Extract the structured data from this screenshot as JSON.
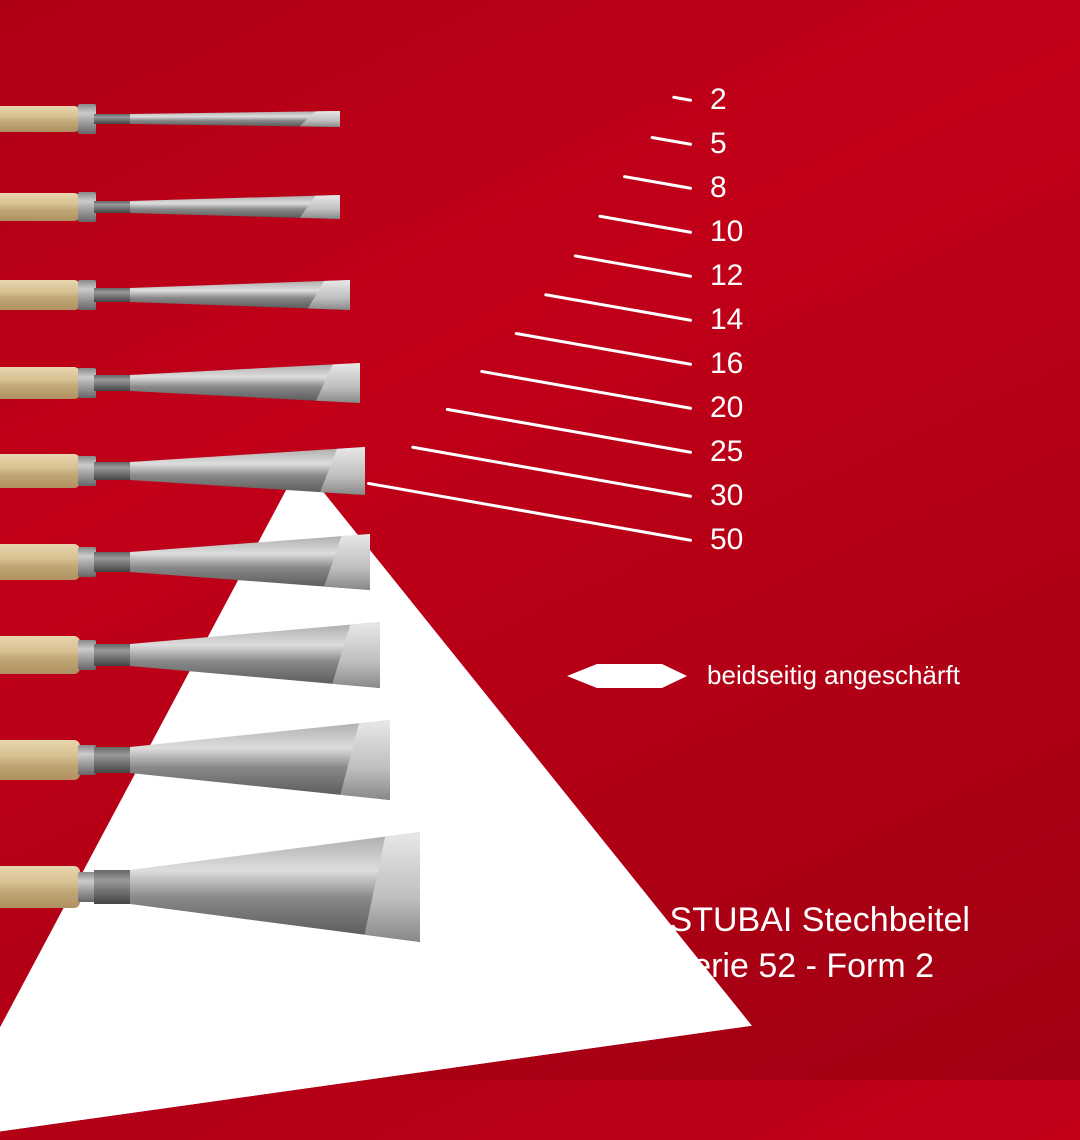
{
  "background": {
    "gradient_from": "#b00015",
    "gradient_to": "#a00012",
    "triangle_color": "#ffffff"
  },
  "chisels": [
    {
      "blade_w": 210,
      "blade_h": 16,
      "neck_h": 10
    },
    {
      "blade_w": 210,
      "blade_h": 24,
      "neck_h": 12
    },
    {
      "blade_w": 220,
      "blade_h": 30,
      "neck_h": 14
    },
    {
      "blade_w": 230,
      "blade_h": 40,
      "neck_h": 16
    },
    {
      "blade_w": 235,
      "blade_h": 48,
      "neck_h": 18
    },
    {
      "blade_w": 240,
      "blade_h": 56,
      "neck_h": 20
    },
    {
      "blade_w": 250,
      "blade_h": 66,
      "neck_h": 22
    },
    {
      "blade_w": 260,
      "blade_h": 80,
      "neck_h": 26
    },
    {
      "blade_w": 290,
      "blade_h": 110,
      "neck_h": 34
    }
  ],
  "sizes": [
    {
      "label": "2",
      "line_len": 20
    },
    {
      "label": "5",
      "line_len": 42
    },
    {
      "label": "8",
      "line_len": 70
    },
    {
      "label": "10",
      "line_len": 95
    },
    {
      "label": "12",
      "line_len": 120
    },
    {
      "label": "14",
      "line_len": 150
    },
    {
      "label": "16",
      "line_len": 180
    },
    {
      "label": "20",
      "line_len": 215
    },
    {
      "label": "25",
      "line_len": 250
    },
    {
      "label": "30",
      "line_len": 285
    },
    {
      "label": "50",
      "line_len": 330
    }
  ],
  "size_line_color": "#ffffff",
  "size_label_fontsize": 30,
  "legend": {
    "text": "beidseitig angeschärft",
    "fontsize": 26,
    "icon_fill": "#ffffff"
  },
  "title": {
    "line1": "STUBAI Stechbeitel",
    "line2": "Serie 52 - Form 2",
    "fontsize": 34,
    "color": "#ffffff"
  }
}
